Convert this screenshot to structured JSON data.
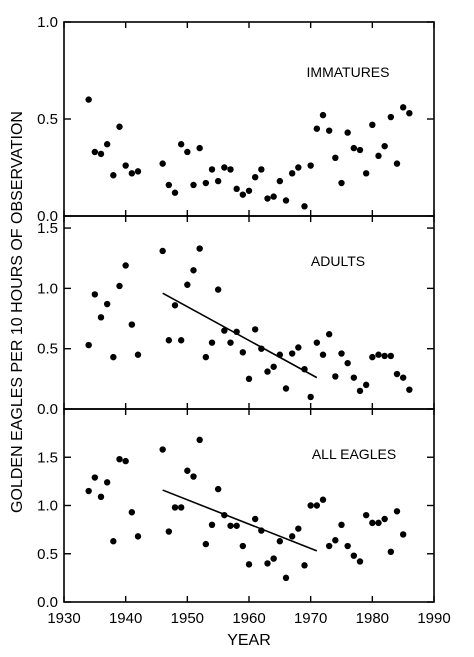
{
  "chart_data": {
    "type": "scatter",
    "xlabel": "YEAR",
    "ylabel": "GOLDEN EAGLES PER 10 HOURS OF OBSERVATION",
    "xlim": [
      1930,
      1990
    ],
    "xticks": [
      "1930",
      "1940",
      "1950",
      "1960",
      "1970",
      "1980",
      "1990"
    ],
    "panels": [
      {
        "title": "IMMATURES",
        "ylim": [
          0,
          1.0
        ],
        "yticks": [
          "0.0",
          "0.5",
          "1.0"
        ],
        "points": [
          [
            1934,
            0.6
          ],
          [
            1935,
            0.33
          ],
          [
            1936,
            0.32
          ],
          [
            1937,
            0.37
          ],
          [
            1938,
            0.21
          ],
          [
            1939,
            0.46
          ],
          [
            1940,
            0.26
          ],
          [
            1941,
            0.22
          ],
          [
            1942,
            0.23
          ],
          [
            1946,
            0.27
          ],
          [
            1947,
            0.16
          ],
          [
            1948,
            0.12
          ],
          [
            1949,
            0.37
          ],
          [
            1950,
            0.33
          ],
          [
            1951,
            0.16
          ],
          [
            1952,
            0.35
          ],
          [
            1953,
            0.17
          ],
          [
            1954,
            0.24
          ],
          [
            1955,
            0.18
          ],
          [
            1956,
            0.25
          ],
          [
            1957,
            0.24
          ],
          [
            1958,
            0.14
          ],
          [
            1959,
            0.11
          ],
          [
            1960,
            0.13
          ],
          [
            1961,
            0.2
          ],
          [
            1962,
            0.24
          ],
          [
            1963,
            0.09
          ],
          [
            1964,
            0.1
          ],
          [
            1965,
            0.18
          ],
          [
            1966,
            0.08
          ],
          [
            1967,
            0.22
          ],
          [
            1968,
            0.25
          ],
          [
            1969,
            0.05
          ],
          [
            1970,
            0.26
          ],
          [
            1971,
            0.45
          ],
          [
            1972,
            0.52
          ],
          [
            1973,
            0.44
          ],
          [
            1974,
            0.3
          ],
          [
            1975,
            0.17
          ],
          [
            1976,
            0.43
          ],
          [
            1977,
            0.35
          ],
          [
            1978,
            0.34
          ],
          [
            1979,
            0.22
          ],
          [
            1980,
            0.47
          ],
          [
            1981,
            0.31
          ],
          [
            1982,
            0.36
          ],
          [
            1983,
            0.51
          ],
          [
            1984,
            0.27
          ],
          [
            1985,
            0.56
          ],
          [
            1986,
            0.53
          ]
        ]
      },
      {
        "title": "ADULTS",
        "ylim": [
          0,
          1.6
        ],
        "yticks": [
          "0.0",
          "0.5",
          "1.0",
          "1.5"
        ],
        "trendline": {
          "x": [
            1946,
            1971
          ],
          "y": [
            0.96,
            0.26
          ]
        },
        "points": [
          [
            1934,
            0.53
          ],
          [
            1935,
            0.95
          ],
          [
            1936,
            0.76
          ],
          [
            1937,
            0.87
          ],
          [
            1938,
            0.43
          ],
          [
            1939,
            1.02
          ],
          [
            1940,
            1.19
          ],
          [
            1941,
            0.7
          ],
          [
            1942,
            0.45
          ],
          [
            1946,
            1.31
          ],
          [
            1947,
            0.57
          ],
          [
            1948,
            0.86
          ],
          [
            1949,
            0.57
          ],
          [
            1950,
            1.03
          ],
          [
            1951,
            1.15
          ],
          [
            1952,
            1.33
          ],
          [
            1953,
            0.43
          ],
          [
            1954,
            0.55
          ],
          [
            1955,
            0.99
          ],
          [
            1956,
            0.65
          ],
          [
            1957,
            0.55
          ],
          [
            1958,
            0.64
          ],
          [
            1959,
            0.47
          ],
          [
            1960,
            0.25
          ],
          [
            1961,
            0.66
          ],
          [
            1962,
            0.5
          ],
          [
            1963,
            0.31
          ],
          [
            1964,
            0.35
          ],
          [
            1965,
            0.45
          ],
          [
            1966,
            0.17
          ],
          [
            1967,
            0.46
          ],
          [
            1968,
            0.51
          ],
          [
            1969,
            0.33
          ],
          [
            1970,
            0.1
          ],
          [
            1971,
            0.55
          ],
          [
            1972,
            0.45
          ],
          [
            1973,
            0.62
          ],
          [
            1974,
            0.27
          ],
          [
            1975,
            0.46
          ],
          [
            1976,
            0.38
          ],
          [
            1977,
            0.26
          ],
          [
            1978,
            0.15
          ],
          [
            1979,
            0.2
          ],
          [
            1980,
            0.43
          ],
          [
            1981,
            0.45
          ],
          [
            1982,
            0.44
          ],
          [
            1983,
            0.44
          ],
          [
            1984,
            0.29
          ],
          [
            1985,
            0.26
          ],
          [
            1986,
            0.16
          ]
        ]
      },
      {
        "title": "ALL EAGLES",
        "ylim": [
          0,
          2.0
        ],
        "yticks": [
          "0.0",
          "0.5",
          "1.0",
          "1.5"
        ],
        "trendline": {
          "x": [
            1946,
            1971
          ],
          "y": [
            1.16,
            0.53
          ]
        },
        "points": [
          [
            1934,
            1.15
          ],
          [
            1935,
            1.29
          ],
          [
            1936,
            1.09
          ],
          [
            1937,
            1.24
          ],
          [
            1938,
            0.63
          ],
          [
            1939,
            1.48
          ],
          [
            1940,
            1.46
          ],
          [
            1941,
            0.93
          ],
          [
            1942,
            0.68
          ],
          [
            1946,
            1.58
          ],
          [
            1947,
            0.73
          ],
          [
            1948,
            0.98
          ],
          [
            1949,
            0.98
          ],
          [
            1950,
            1.36
          ],
          [
            1951,
            1.3
          ],
          [
            1952,
            1.68
          ],
          [
            1953,
            0.6
          ],
          [
            1954,
            0.8
          ],
          [
            1955,
            1.17
          ],
          [
            1956,
            0.9
          ],
          [
            1957,
            0.79
          ],
          [
            1958,
            0.79
          ],
          [
            1959,
            0.58
          ],
          [
            1960,
            0.39
          ],
          [
            1961,
            0.86
          ],
          [
            1962,
            0.74
          ],
          [
            1963,
            0.4
          ],
          [
            1964,
            0.45
          ],
          [
            1965,
            0.63
          ],
          [
            1966,
            0.25
          ],
          [
            1967,
            0.68
          ],
          [
            1968,
            0.76
          ],
          [
            1969,
            0.38
          ],
          [
            1970,
            1.0
          ],
          [
            1971,
            1.0
          ],
          [
            1972,
            1.06
          ],
          [
            1973,
            0.58
          ],
          [
            1974,
            0.64
          ],
          [
            1975,
            0.8
          ],
          [
            1976,
            0.58
          ],
          [
            1977,
            0.48
          ],
          [
            1978,
            0.42
          ],
          [
            1979,
            0.9
          ],
          [
            1980,
            0.82
          ],
          [
            1981,
            0.82
          ],
          [
            1982,
            0.86
          ],
          [
            1983,
            0.52
          ],
          [
            1984,
            0.94
          ],
          [
            1985,
            0.7
          ]
        ]
      }
    ]
  }
}
